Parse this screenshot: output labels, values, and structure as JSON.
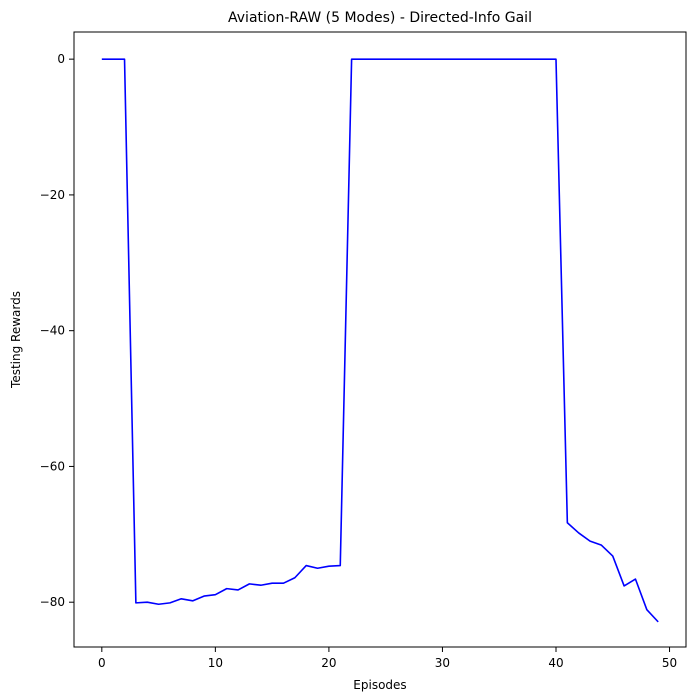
{
  "chart_data": {
    "type": "line",
    "title": "Aviation-RAW (5 Modes) - Directed-Info Gail",
    "xlabel": "Episodes",
    "ylabel": "Testing Rewards",
    "xlim": [
      -2.45,
      51.45
    ],
    "ylim": [
      -86.6,
      4.0
    ],
    "xticks": [
      0,
      10,
      20,
      30,
      40,
      50
    ],
    "yticks": [
      0,
      -20,
      -40,
      -60,
      -80
    ],
    "xtick_labels": [
      "0",
      "10",
      "20",
      "30",
      "40",
      "50"
    ],
    "ytick_labels": [
      "0",
      "−20",
      "−40",
      "−60",
      "−80"
    ],
    "grid": false,
    "colors": {
      "series": "#0000ff",
      "axes": "#000000",
      "background": "#ffffff"
    },
    "series": [
      {
        "x": [
          0,
          1,
          2,
          3,
          4,
          5,
          6,
          7,
          8,
          9,
          10,
          11,
          12,
          13,
          14,
          15,
          16,
          17,
          18,
          19,
          20,
          21,
          22,
          23,
          24,
          25,
          26,
          27,
          28,
          29,
          30,
          31,
          32,
          33,
          34,
          35,
          36,
          37,
          38,
          39,
          40,
          41,
          42,
          43,
          44,
          45,
          46,
          47,
          48,
          49
        ],
        "values": [
          0,
          0,
          0,
          -80.1,
          -80.0,
          -80.3,
          -80.1,
          -79.5,
          -79.8,
          -79.1,
          -78.9,
          -78.0,
          -78.2,
          -77.3,
          -77.5,
          -77.2,
          -77.2,
          -76.4,
          -74.6,
          -75.0,
          -74.7,
          -74.6,
          0,
          0,
          0,
          0,
          0,
          0,
          0,
          0,
          0,
          0,
          0,
          0,
          0,
          0,
          0,
          0,
          0,
          0,
          0,
          -68.3,
          -69.8,
          -71.0,
          -71.6,
          -73.2,
          -77.6,
          -76.6,
          -81.1,
          -82.9
        ]
      }
    ]
  }
}
